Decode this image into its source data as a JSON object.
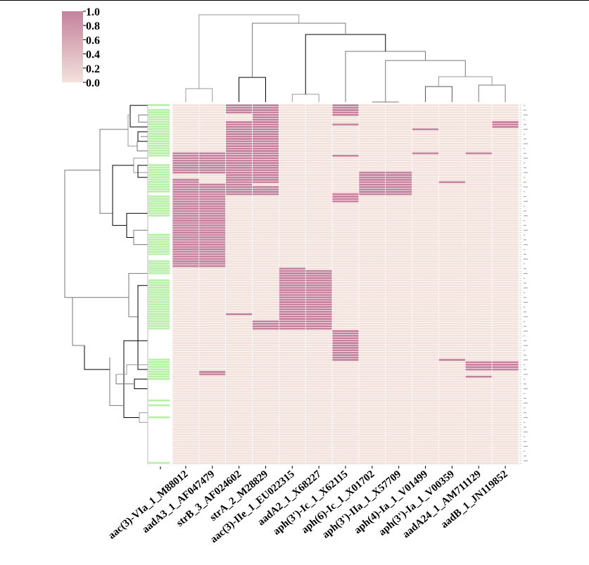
{
  "chart_data": {
    "type": "heatmap",
    "title": "",
    "subtitle": "",
    "xlabel": "",
    "ylabel": "",
    "columns": [
      "aac(3)-VIa_1_M88012",
      "aadA3_1_AF047479",
      "strB_3_AF024602",
      "strA_2_M28829",
      "aac(3)-IIe_1_EU022315",
      "aadA2_1_X68227",
      "aph(3')-Ic_1_X62115",
      "aph(6)-Ic_1_X01702",
      "aph(3')-IIa_1_X57709",
      "aph(4)-Ia_1_V01499",
      "aph(3')-Ia_1_V00359",
      "aadA24_1_AM711129",
      "aadB_1_JN119852"
    ],
    "n_rows": 150,
    "row_labels_legible": false,
    "value_range": [
      0,
      1
    ],
    "values_are_binary": true,
    "present_blocks": [
      {
        "column": "aac(3)-VIa_1_M88012",
        "row_ranges": [
          [
            20,
            28
          ],
          [
            31,
            67
          ]
        ]
      },
      {
        "column": "aadA3_1_AF047479",
        "row_ranges": [
          [
            20,
            28
          ],
          [
            33,
            67
          ],
          [
            111,
            112
          ]
        ]
      },
      {
        "column": "strB_3_AF024602",
        "row_ranges": [
          [
            0,
            3
          ],
          [
            7,
            37
          ],
          [
            87,
            87
          ]
        ]
      },
      {
        "column": "strA_2_M28829",
        "row_ranges": [
          [
            0,
            6
          ],
          [
            7,
            32
          ],
          [
            34,
            37
          ],
          [
            90,
            93
          ]
        ]
      },
      {
        "column": "aac(3)-IIe_1_EU022315",
        "row_ranges": [
          [
            68,
            93
          ]
        ]
      },
      {
        "column": "aadA2_1_X68227",
        "row_ranges": [
          [
            69,
            93
          ]
        ]
      },
      {
        "column": "aph(3')-Ic_1_X62115",
        "row_ranges": [
          [
            0,
            4
          ],
          [
            8,
            8
          ],
          [
            21,
            21
          ],
          [
            37,
            40
          ],
          [
            94,
            106
          ]
        ]
      },
      {
        "column": "aph(6)-Ic_1_X01702",
        "row_ranges": [
          [
            28,
            37
          ]
        ]
      },
      {
        "column": "aph(3')-IIa_1_X57709",
        "row_ranges": [
          [
            28,
            37
          ]
        ]
      },
      {
        "column": "aph(4)-Ia_1_V01499",
        "row_ranges": [
          [
            10,
            10
          ],
          [
            20,
            20
          ]
        ]
      },
      {
        "column": "aph(3')-Ia_1_V00359",
        "row_ranges": [
          [
            32,
            32
          ],
          [
            106,
            106
          ]
        ]
      },
      {
        "column": "aadA24_1_AM711129",
        "row_ranges": [
          [
            20,
            20
          ],
          [
            107,
            110
          ],
          [
            113,
            113
          ]
        ]
      },
      {
        "column": "aadB_1_JN119852",
        "row_ranges": [
          [
            7,
            9
          ],
          [
            107,
            110
          ]
        ]
      }
    ],
    "row_color_bar": {
      "color": "#b8f0a8",
      "marked_row_ranges": [
        [
          0,
          0
        ],
        [
          2,
          21
        ],
        [
          25,
          36
        ],
        [
          38,
          46
        ],
        [
          54,
          62
        ],
        [
          65,
          70
        ],
        [
          73,
          93
        ],
        [
          106,
          114
        ],
        [
          123,
          123
        ],
        [
          125,
          125
        ],
        [
          130,
          130
        ],
        [
          149,
          149
        ]
      ]
    },
    "colorbar": {
      "ticks": [
        "0.0",
        "0.2",
        "0.4",
        "0.6",
        "0.8",
        "1.0"
      ],
      "min": 0.0,
      "max": 1.0,
      "low_color": "#f3e2dc",
      "high_color": "#c4829c"
    },
    "col_dendrogram": true,
    "row_dendrogram": true,
    "grid": false,
    "legend": "top-left"
  }
}
